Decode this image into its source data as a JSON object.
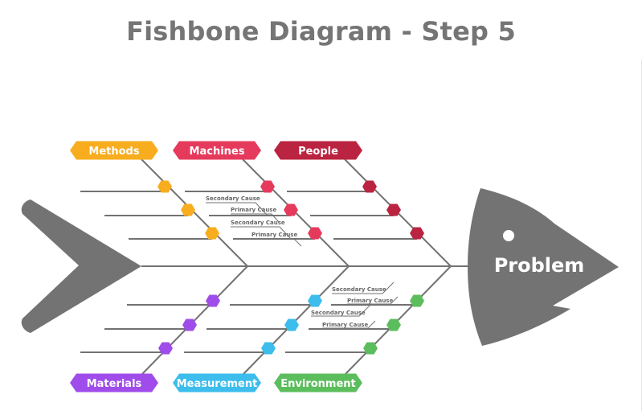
{
  "title": "Fishbone Diagram - Step 5",
  "head_label": "Problem",
  "colors": {
    "bone": "#727272",
    "fish": "#737373",
    "methods": "#f7ad1e",
    "machines": "#e63a5d",
    "people": "#bb2440",
    "materials": "#a04cea",
    "measurement": "#3cbdec",
    "environment": "#5cbd5d"
  },
  "categories": {
    "methods": "Methods",
    "machines": "Machines",
    "people": "People",
    "materials": "Materials",
    "measurement": "Measurement",
    "environment": "Environment"
  },
  "cause_labels": {
    "machines_secondary_1": "Secondary Cause",
    "machines_primary_1": "Primary Cause",
    "machines_secondary_2": "Secondary Cause",
    "machines_primary_2": "Primary Cause",
    "environment_secondary_1": "Secondary Cause",
    "environment_primary_1": "Primary Cause",
    "environment_secondary_2": "Secondary Cause",
    "environment_primary_2": "Primary Cause"
  }
}
